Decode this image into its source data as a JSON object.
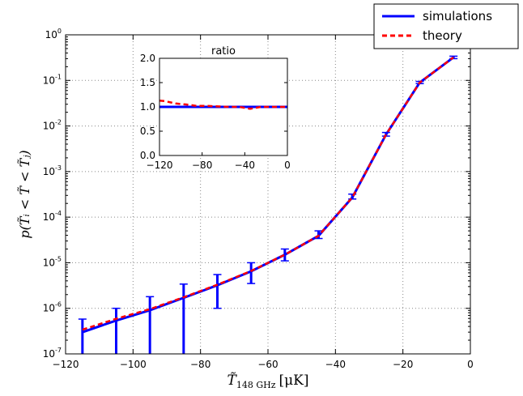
{
  "chart_data": [
    {
      "type": "line",
      "title": "",
      "xlabel": "T̃",
      "xlabel_sub": "148 GHz",
      "xlabel_unit": "[μK]",
      "ylabel": "p(T̃ᵢ < T̃ < T̃ⱼ)",
      "xlim": [
        -120,
        0
      ],
      "ylim": [
        1e-07,
        1
      ],
      "yscale": "log",
      "grid": true,
      "x_ticks": [
        "−120",
        "−100",
        "−80",
        "−60",
        "−40",
        "−20",
        "0"
      ],
      "x_tick_values": [
        -120,
        -100,
        -80,
        -60,
        -40,
        -20,
        0
      ],
      "y_tick_base": "10",
      "y_tick_exponents": [
        "-7",
        "-6",
        "-5",
        "-4",
        "-3",
        "-2",
        "-1",
        "0"
      ],
      "legend": {
        "placement": "top-right outside",
        "entries": [
          "simulations",
          "theory"
        ]
      },
      "x": [
        -115,
        -105,
        -95,
        -85,
        -75,
        -65,
        -55,
        -45,
        -35,
        -25,
        -15,
        -5
      ],
      "series": [
        {
          "name": "simulations",
          "color": "#0000ff",
          "style": "solid",
          "values": [
            3e-07,
            5.4e-07,
            9.1e-07,
            1.7e-06,
            3.2e-06,
            6.5e-06,
            1.5e-05,
            3.9e-05,
            0.00027,
            0.0065,
            0.09,
            0.32
          ],
          "err_upper": [
            5.8e-07,
            1e-06,
            1.8e-06,
            3.4e-06,
            5.5e-06,
            1e-05,
            2e-05,
            5e-05,
            0.00032,
            0.0072,
            0.095,
            0.34
          ],
          "err_lower": [
            1e-08,
            1e-08,
            1e-08,
            1e-08,
            1e-06,
            3.5e-06,
            1.1e-05,
            3.4e-05,
            0.00025,
            0.006,
            0.085,
            0.3
          ]
        },
        {
          "name": "theory",
          "color": "#ff0000",
          "style": "dashed",
          "values": [
            3.4e-07,
            5.9e-07,
            9.6e-07,
            1.75e-06,
            3.3e-06,
            6.6e-06,
            1.5e-05,
            3.9e-05,
            0.00027,
            0.0065,
            0.09,
            0.32
          ]
        }
      ]
    },
    {
      "type": "line",
      "title": "ratio",
      "xlim": [
        -120,
        0
      ],
      "ylim": [
        0,
        2
      ],
      "x_ticks": [
        "−120",
        "−80",
        "−40",
        "0"
      ],
      "x_tick_values": [
        -120,
        -80,
        -40,
        0
      ],
      "y_ticks": [
        "0.0",
        "0.5",
        "1.0",
        "1.5",
        "2.0"
      ],
      "y_tick_values": [
        0,
        0.5,
        1,
        1.5,
        2
      ],
      "x": [
        -120,
        -115,
        -105,
        -95,
        -85,
        -75,
        -65,
        -55,
        -45,
        -35,
        -25,
        -15,
        -5,
        0
      ],
      "series": [
        {
          "name": "simulations",
          "color": "#0000ff",
          "style": "solid",
          "values": [
            1,
            1,
            1,
            1,
            1,
            1,
            1,
            1,
            1,
            1,
            1,
            1,
            1,
            1
          ]
        },
        {
          "name": "theory",
          "color": "#ff0000",
          "style": "dashed",
          "values": [
            1.13,
            1.12,
            1.07,
            1.05,
            1.02,
            1.02,
            1.01,
            1.0,
            1.0,
            0.96,
            1.0,
            1.0,
            1.0,
            1.0
          ]
        }
      ]
    }
  ]
}
